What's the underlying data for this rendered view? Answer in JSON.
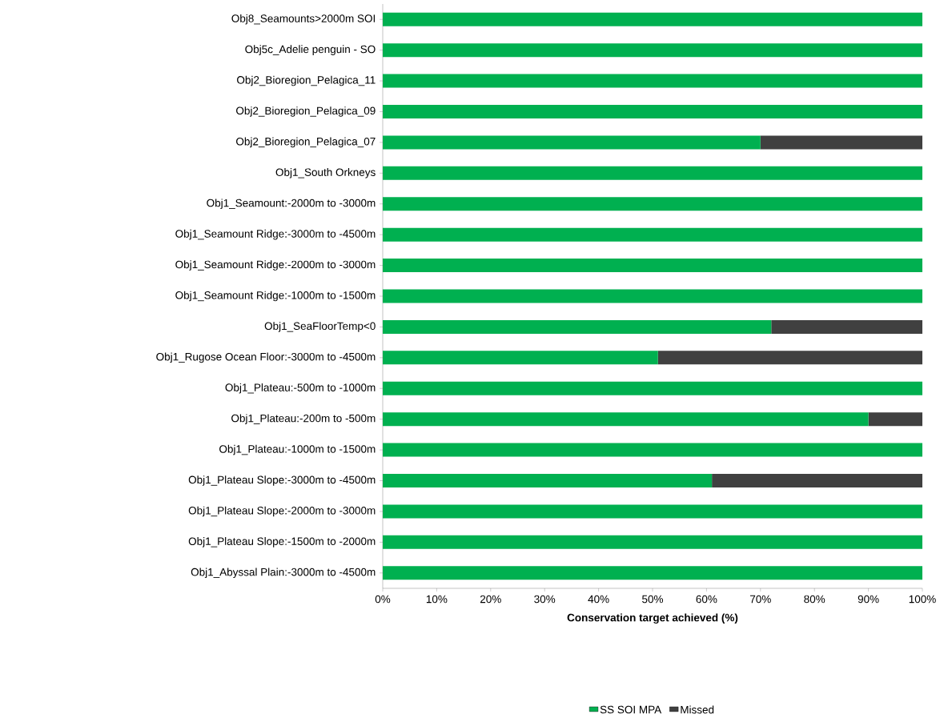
{
  "chart_data": {
    "type": "bar",
    "orientation": "horizontal",
    "stacked": true,
    "categories": [
      "Obj8_Seamounts>2000m SOI",
      "Obj5c_Adelie penguin - SO",
      "Obj2_Bioregion_Pelagica_11",
      "Obj2_Bioregion_Pelagica_09",
      "Obj2_Bioregion_Pelagica_07",
      "Obj1_South Orkneys",
      "Obj1_Seamount:-2000m to -3000m",
      "Obj1_Seamount Ridge:-3000m to -4500m",
      "Obj1_Seamount Ridge:-2000m to -3000m",
      "Obj1_Seamount Ridge:-1000m to -1500m",
      "Obj1_SeaFloorTemp<0",
      "Obj1_Rugose Ocean Floor:-3000m to -4500m",
      "Obj1_Plateau:-500m to -1000m",
      "Obj1_Plateau:-200m to -500m",
      "Obj1_Plateau:-1000m to -1500m",
      "Obj1_Plateau Slope:-3000m to -4500m",
      "Obj1_Plateau Slope:-2000m to -3000m",
      "Obj1_Plateau Slope:-1500m to -2000m",
      "Obj1_Abyssal Plain:-3000m to -4500m"
    ],
    "series": [
      {
        "name": "SS SOI MPA",
        "color": "#00b050",
        "values": [
          100,
          100,
          100,
          100,
          70,
          100,
          100,
          100,
          100,
          100,
          72,
          51,
          100,
          90,
          100,
          61,
          100,
          100,
          100
        ]
      },
      {
        "name": "Missed",
        "color": "#404040",
        "values": [
          0,
          0,
          0,
          0,
          30,
          0,
          0,
          0,
          0,
          0,
          28,
          49,
          0,
          10,
          0,
          39,
          0,
          0,
          0
        ]
      }
    ],
    "xlim": [
      0,
      100
    ],
    "xticks": [
      {
        "value": 0,
        "label": "0%"
      },
      {
        "value": 10,
        "label": "10%"
      },
      {
        "value": 20,
        "label": "20%"
      },
      {
        "value": 30,
        "label": "30%"
      },
      {
        "value": 40,
        "label": "40%"
      },
      {
        "value": 50,
        "label": "50%"
      },
      {
        "value": 60,
        "label": "60%"
      },
      {
        "value": 70,
        "label": "70%"
      },
      {
        "value": 80,
        "label": "80%"
      },
      {
        "value": 90,
        "label": "90%"
      },
      {
        "value": 100,
        "label": "100%"
      }
    ],
    "xlabel": "Conservation target achieved (%)",
    "legend": "bottom"
  }
}
